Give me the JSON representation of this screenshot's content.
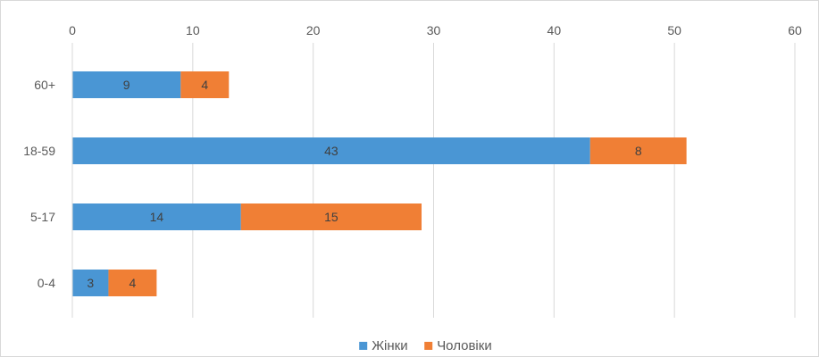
{
  "chart_data": {
    "type": "bar",
    "orientation": "horizontal",
    "stacked": true,
    "categories": [
      "60+",
      "18-59",
      "5-17",
      "0-4"
    ],
    "series": [
      {
        "name": "Жінки",
        "values": [
          9,
          43,
          14,
          3
        ],
        "color": "#4A96D4"
      },
      {
        "name": "Чоловіки",
        "values": [
          4,
          8,
          15,
          4
        ],
        "color": "#F07F35"
      }
    ],
    "xlim": [
      0,
      60
    ],
    "xticks": [
      0,
      10,
      20,
      30,
      40,
      50,
      60
    ],
    "xaxis_position": "top",
    "grid": true,
    "legend_position": "bottom-center"
  }
}
